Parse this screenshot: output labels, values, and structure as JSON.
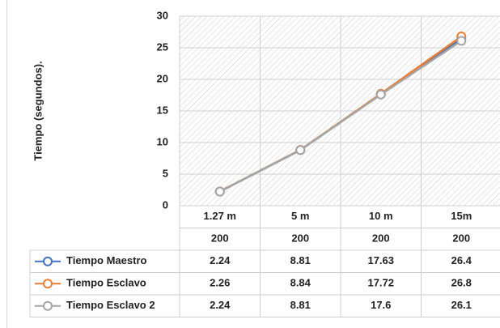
{
  "chart_data": {
    "type": "line",
    "ylabel": "Tiempo (segundos).",
    "ylim": [
      0,
      30
    ],
    "yticks": [
      0,
      5,
      10,
      15,
      20,
      25,
      30
    ],
    "categories": [
      "1.27 m",
      "5 m",
      "10 m",
      "15m"
    ],
    "categories_row2": [
      "200",
      "200",
      "200",
      "200"
    ],
    "grid": "diagonal hatch",
    "legend": "data table",
    "series": [
      {
        "name": "Tiempo Maestro",
        "color": "#4472c4",
        "values": [
          2.24,
          8.81,
          17.63,
          26.4
        ]
      },
      {
        "name": "Tiempo Esclavo",
        "color": "#ed7d31",
        "values": [
          2.26,
          8.84,
          17.72,
          26.8
        ]
      },
      {
        "name": "Tiempo Esclavo 2",
        "color": "#a5a5a5",
        "values": [
          2.24,
          8.81,
          17.6,
          26.1
        ]
      }
    ],
    "table": [
      [
        "2.24",
        "8.81",
        "17.63",
        "26.4"
      ],
      [
        "2.26",
        "8.84",
        "17.72",
        "26.8"
      ],
      [
        "2.24",
        "8.81",
        "17.6",
        "26.1"
      ]
    ]
  }
}
